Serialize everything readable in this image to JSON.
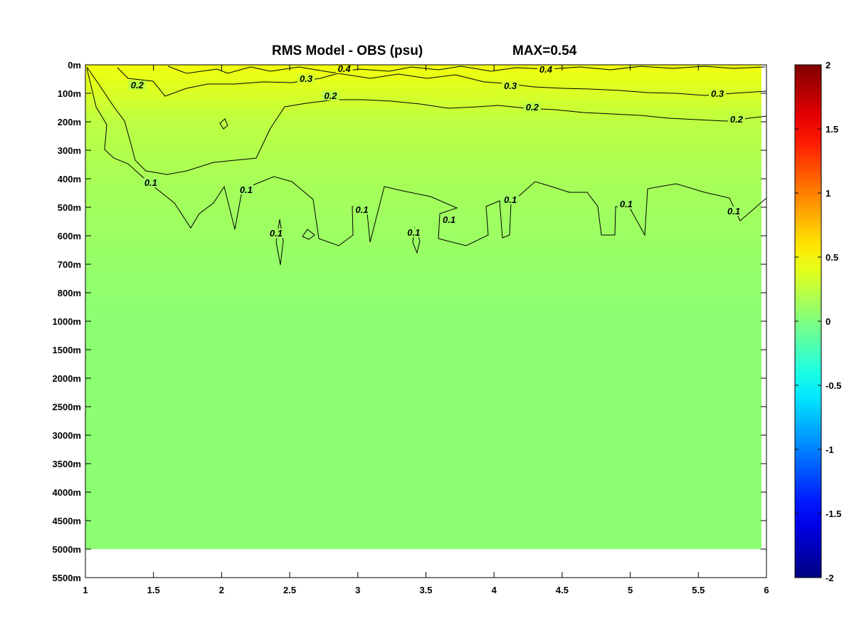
{
  "chart_data": {
    "type": "heatmap",
    "title": "RMS Model - OBS (psu)",
    "subtitle": "MAX=0.54",
    "x_ticks": [
      1,
      1.5,
      2,
      2.5,
      3,
      3.5,
      4,
      4.5,
      5,
      5.5,
      6
    ],
    "x_tick_labels": [
      "1",
      "1.5",
      "2",
      "2.5",
      "3",
      "3.5",
      "4",
      "4.5",
      "5",
      "5.5",
      "6"
    ],
    "xlim": [
      1,
      6
    ],
    "y_tick_labels": [
      "0m",
      "100m",
      "200m",
      "300m",
      "400m",
      "500m",
      "600m",
      "700m",
      "800m",
      "1000m",
      "1500m",
      "2000m",
      "2500m",
      "3000m",
      "3500m",
      "4000m",
      "4500m",
      "5000m",
      "5500m"
    ],
    "data_extent_index": 17,
    "colorbar": {
      "colormap": "jet",
      "range": [
        -2,
        2
      ],
      "ticks": [
        2,
        1.5,
        1,
        0.5,
        0,
        -0.5,
        -1,
        -1.5,
        -2
      ],
      "tick_labels": [
        "2",
        "1.5",
        "1",
        "0.5",
        "0",
        "-0.5",
        "-1",
        "-1.5",
        "-2"
      ]
    },
    "depth_profile": [
      {
        "depth": "0m",
        "value": 0.45
      },
      {
        "depth": "100m",
        "value": 0.35
      },
      {
        "depth": "200m",
        "value": 0.24
      },
      {
        "depth": "300m",
        "value": 0.2
      },
      {
        "depth": "400m",
        "value": 0.16
      },
      {
        "depth": "500m",
        "value": 0.13
      },
      {
        "depth": "600m",
        "value": 0.11
      },
      {
        "depth": "700m",
        "value": 0.09
      },
      {
        "depth": "800m",
        "value": 0.07
      },
      {
        "depth": "1000m",
        "value": 0.05
      },
      {
        "depth": "5000m",
        "value": 0.05
      }
    ],
    "contour_labels": [
      {
        "text": "0.4",
        "x": 2.9,
        "depth_index": 0.2
      },
      {
        "text": "0.4",
        "x": 4.38,
        "depth_index": 0.22
      },
      {
        "text": "0.3",
        "x": 2.62,
        "depth_index": 0.55
      },
      {
        "text": "0.3",
        "x": 4.12,
        "depth_index": 0.8
      },
      {
        "text": "0.3",
        "x": 5.64,
        "depth_index": 1.08
      },
      {
        "text": "0.2",
        "x": 1.38,
        "depth_index": 0.78
      },
      {
        "text": "0.2",
        "x": 2.8,
        "depth_index": 1.15
      },
      {
        "text": "0.2",
        "x": 4.28,
        "depth_index": 1.55
      },
      {
        "text": "0.2",
        "x": 5.78,
        "depth_index": 1.98
      },
      {
        "text": "0.1",
        "x": 1.48,
        "depth_index": 4.2
      },
      {
        "text": "0.1",
        "x": 2.18,
        "depth_index": 4.45
      },
      {
        "text": "0.1",
        "x": 2.4,
        "depth_index": 5.98
      },
      {
        "text": "0.1",
        "x": 3.03,
        "depth_index": 5.15
      },
      {
        "text": "0.1",
        "x": 3.41,
        "depth_index": 5.95
      },
      {
        "text": "0.1",
        "x": 3.67,
        "depth_index": 5.5
      },
      {
        "text": "0.1",
        "x": 4.12,
        "depth_index": 4.8
      },
      {
        "text": "0.1",
        "x": 4.97,
        "depth_index": 4.95
      },
      {
        "text": "0.1",
        "x": 5.76,
        "depth_index": 5.2
      }
    ]
  }
}
